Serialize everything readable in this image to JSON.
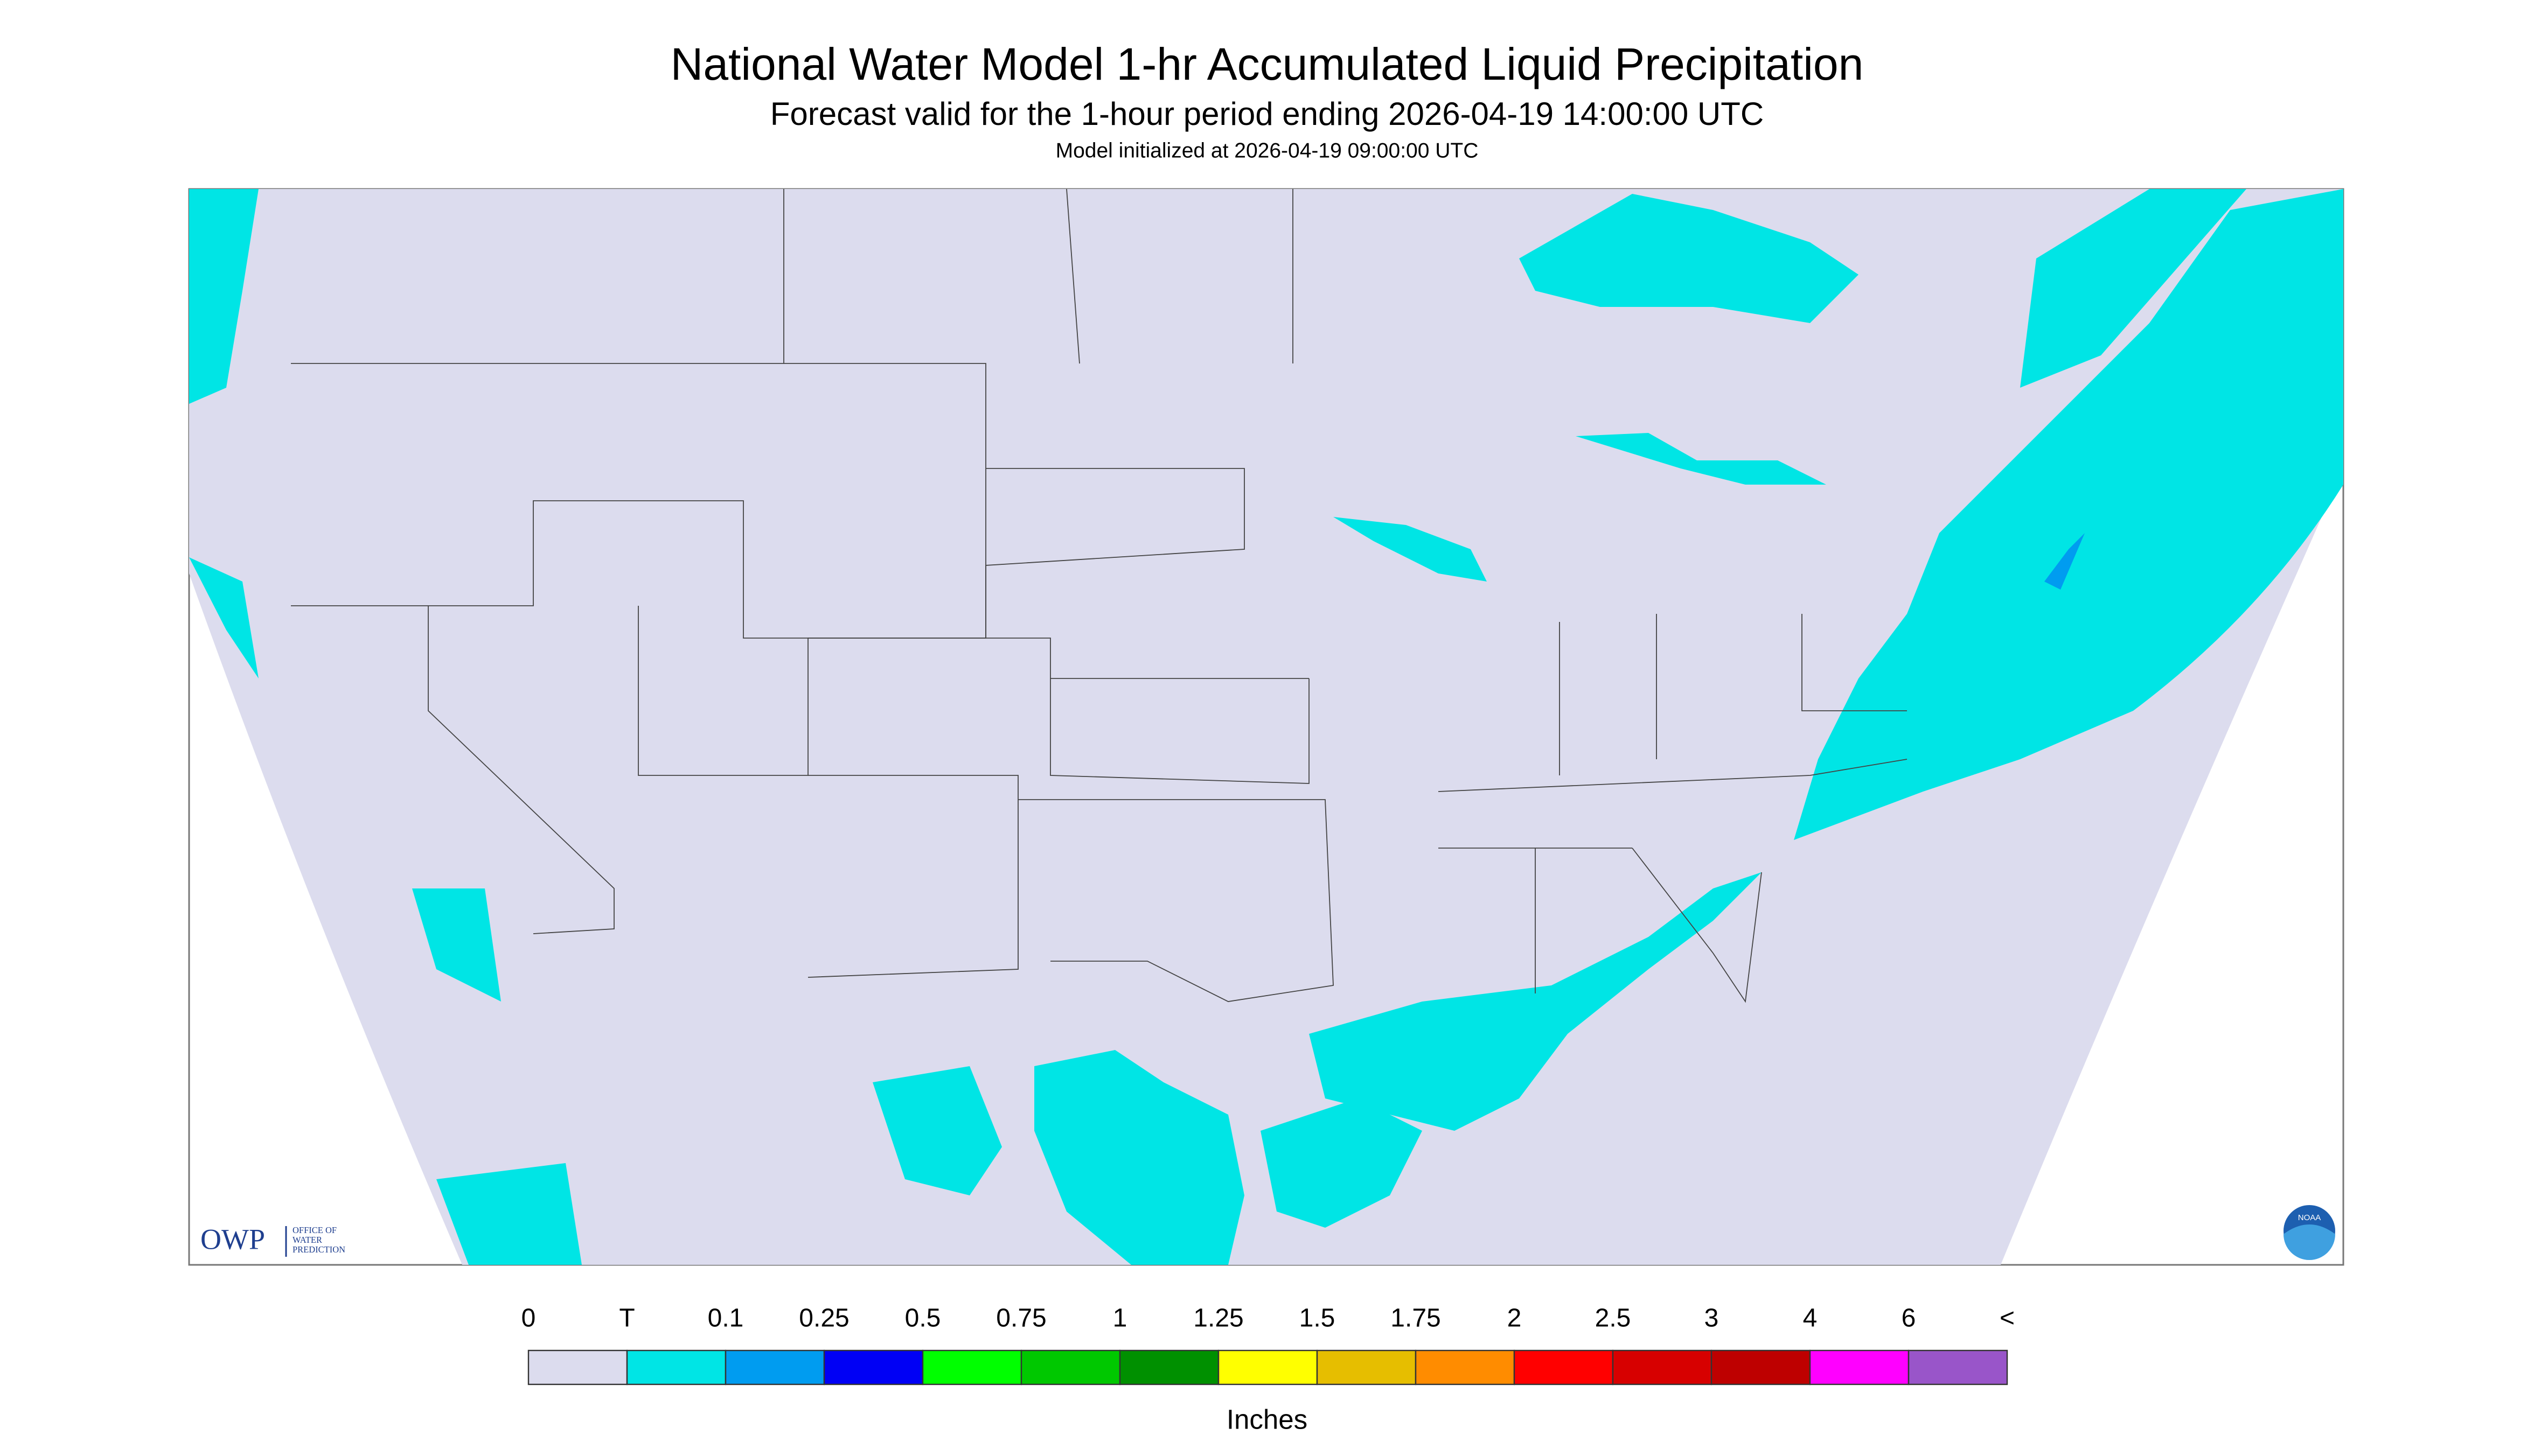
{
  "header": {
    "title": "National Water Model 1-hr Accumulated Liquid Precipitation",
    "subtitle": "Forecast valid for the 1-hour period ending 2026-04-19 14:00:00 UTC",
    "init": "Model initialized at 2026-04-19 09:00:00 UTC"
  },
  "logo": {
    "owp": "OWP",
    "office": [
      "OFFICE OF",
      "WATER",
      "PREDICTION"
    ],
    "noaa": "NOAA"
  },
  "legend": {
    "labels": [
      "0",
      "T",
      "0.1",
      "0.25",
      "0.5",
      "0.75",
      "1",
      "1.25",
      "1.5",
      "1.75",
      "2",
      "2.5",
      "3",
      "4",
      "6",
      "<"
    ],
    "colors": [
      "#dcdcee",
      "#00e5e5",
      "#009cf0",
      "#0000f5",
      "#00ff00",
      "#00c800",
      "#009000",
      "#ffff00",
      "#e6be00",
      "#ff8c00",
      "#ff0000",
      "#d70000",
      "#be0000",
      "#ff00ff",
      "#9955c9"
    ],
    "unit": "Inches"
  }
}
